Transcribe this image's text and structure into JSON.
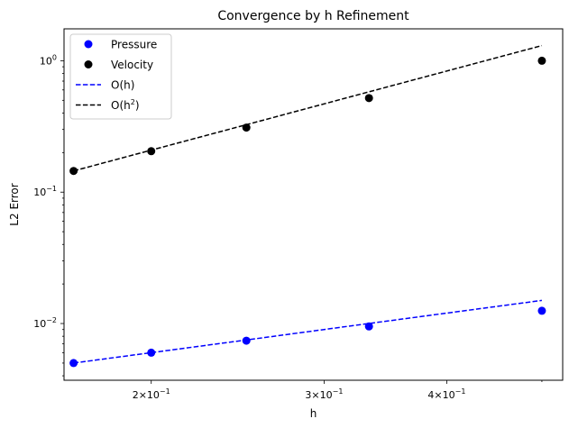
{
  "chart_data": {
    "type": "scatter",
    "title": "Convergence by h Refinement",
    "xlabel": "h",
    "ylabel": "L2 Error",
    "xscale": "log",
    "yscale": "log",
    "xlim": [
      0.163,
      0.525
    ],
    "ylim": [
      0.0037,
      1.75
    ],
    "legend_position": "top-left",
    "x": [
      0.1667,
      0.2,
      0.25,
      0.3333,
      0.5
    ],
    "series": [
      {
        "name": "Pressure",
        "kind": "points",
        "color": "#0000ff",
        "y": [
          0.005,
          0.006,
          0.0074,
          0.0095,
          0.0125
        ]
      },
      {
        "name": "Velocity",
        "kind": "points",
        "color": "#000000",
        "y": [
          0.145,
          0.205,
          0.31,
          0.52,
          1.0
        ]
      },
      {
        "name": "O(h)",
        "kind": "dashed-line",
        "color": "#0000ff",
        "y": [
          0.005,
          0.006,
          0.0075,
          0.01,
          0.015
        ]
      },
      {
        "name": "O(h2)",
        "kind": "dashed-line",
        "color": "#000000",
        "y": [
          0.145,
          0.209,
          0.326,
          0.58,
          1.305
        ]
      }
    ],
    "x_ticks": [
      {
        "value": 0.2,
        "base": "2×10",
        "exp": "−1"
      },
      {
        "value": 0.3,
        "base": "3×10",
        "exp": "−1"
      },
      {
        "value": 0.4,
        "base": "4×10",
        "exp": "−1"
      }
    ],
    "y_ticks": [
      {
        "value": 0.01,
        "base": "10",
        "exp": "−2"
      },
      {
        "value": 0.1,
        "base": "10",
        "exp": "−1"
      },
      {
        "value": 1,
        "base": "10",
        "exp": "0"
      }
    ],
    "legend": [
      {
        "label": "Pressure",
        "marker": "dot",
        "color": "#0000ff"
      },
      {
        "label": "Velocity",
        "marker": "dot",
        "color": "#000000"
      },
      {
        "label": "O(h)",
        "marker": "dash",
        "color": "#0000ff"
      },
      {
        "label": "O(h",
        "sup": "2",
        "suffix": ")",
        "marker": "dash",
        "color": "#000000"
      }
    ]
  }
}
